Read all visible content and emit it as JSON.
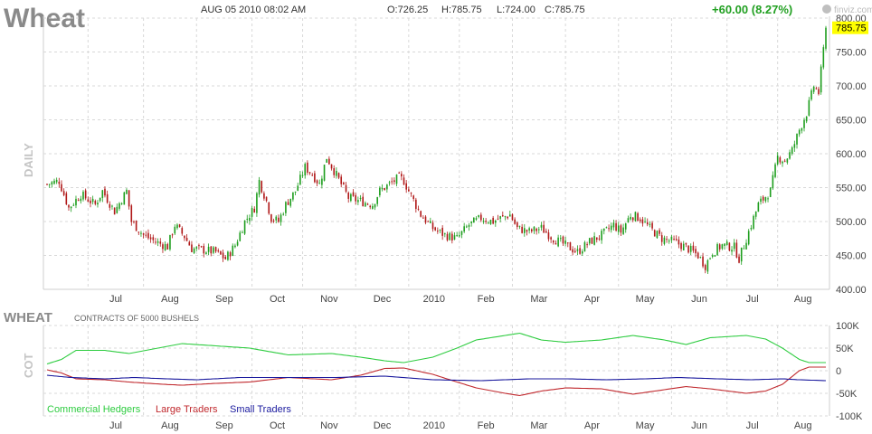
{
  "header": {
    "title": "Wheat",
    "datetime": "AUG 05 2010 08:02 AM",
    "open": "O:726.25",
    "high": "H:785.75",
    "low": "L:724.00",
    "close": "C:785.75",
    "change": "+60.00 (8.27%)",
    "watermark": "finviz.com",
    "last_price_label": "785.75"
  },
  "colors": {
    "up": "#1e9e1e",
    "down": "#b01818",
    "commercial": "#2ecc40",
    "large": "#c0282d",
    "small": "#1a1a9e",
    "grid": "#d8d8d8",
    "price_tag": "#ffff00",
    "change": "#22a022"
  },
  "chart_data": [
    {
      "type": "candlestick",
      "title": "Wheat",
      "ylabel": "DAILY",
      "x_tick_labels": [
        "Jul",
        "Aug",
        "Sep",
        "Oct",
        "Nov",
        "Dec",
        "2010",
        "Feb",
        "Mar",
        "Apr",
        "May",
        "Jun",
        "Jul",
        "Aug"
      ],
      "y_ticks": [
        400,
        450,
        500,
        550,
        600,
        650,
        700,
        750,
        800
      ],
      "y_tick_labels": [
        "400.00",
        "450.00",
        "500.00",
        "550.00",
        "600.00",
        "650.00",
        "700.00",
        "750.00",
        "800.00"
      ],
      "ylim": [
        400,
        800
      ],
      "grid": true,
      "close_path": [
        [
          0,
          555
        ],
        [
          5,
          560
        ],
        [
          9,
          520
        ],
        [
          14,
          540
        ],
        [
          20,
          525
        ],
        [
          23,
          545
        ],
        [
          28,
          515
        ],
        [
          33,
          545
        ],
        [
          35,
          500
        ],
        [
          40,
          480
        ],
        [
          45,
          470
        ],
        [
          50,
          463
        ],
        [
          53,
          495
        ],
        [
          57,
          478
        ],
        [
          60,
          460
        ],
        [
          65,
          458
        ],
        [
          70,
          455
        ],
        [
          74,
          445
        ],
        [
          78,
          465
        ],
        [
          82,
          500
        ],
        [
          86,
          520
        ],
        [
          88,
          560
        ],
        [
          91,
          530
        ],
        [
          93,
          505
        ],
        [
          96,
          500
        ],
        [
          99,
          525
        ],
        [
          103,
          545
        ],
        [
          107,
          580
        ],
        [
          110,
          570
        ],
        [
          113,
          555
        ],
        [
          116,
          595
        ],
        [
          119,
          575
        ],
        [
          122,
          555
        ],
        [
          125,
          535
        ],
        [
          130,
          530
        ],
        [
          135,
          525
        ],
        [
          138,
          545
        ],
        [
          142,
          555
        ],
        [
          146,
          565
        ],
        [
          148,
          560
        ],
        [
          150,
          545
        ],
        [
          155,
          510
        ],
        [
          160,
          490
        ],
        [
          165,
          480
        ],
        [
          170,
          475
        ],
        [
          175,
          495
        ],
        [
          180,
          505
        ],
        [
          185,
          500
        ],
        [
          188,
          505
        ],
        [
          192,
          510
        ],
        [
          195,
          490
        ],
        [
          200,
          485
        ],
        [
          205,
          490
        ],
        [
          210,
          475
        ],
        [
          215,
          465
        ],
        [
          220,
          455
        ],
        [
          225,
          470
        ],
        [
          230,
          480
        ],
        [
          235,
          495
        ],
        [
          238,
          485
        ],
        [
          242,
          510
        ],
        [
          246,
          505
        ],
        [
          250,
          490
        ],
        [
          255,
          475
        ],
        [
          260,
          470
        ],
        [
          265,
          462
        ],
        [
          270,
          450
        ],
        [
          273,
          435
        ],
        [
          276,
          455
        ],
        [
          280,
          465
        ],
        [
          285,
          462
        ],
        [
          287,
          445
        ],
        [
          290,
          475
        ],
        [
          295,
          525
        ],
        [
          300,
          545
        ],
        [
          303,
          595
        ],
        [
          306,
          590
        ],
        [
          309,
          605
        ],
        [
          312,
          635
        ],
        [
          315,
          660
        ],
        [
          318,
          700
        ],
        [
          320,
          690
        ],
        [
          323,
          785
        ]
      ],
      "candle_count": 324,
      "last_close": 785.75
    },
    {
      "type": "line",
      "title": "WHEAT",
      "subtitle": "CONTRACTS OF 5000 BUSHELS",
      "ylabel": "COT",
      "x_tick_labels": [
        "Jul",
        "Aug",
        "Sep",
        "Oct",
        "Nov",
        "Dec",
        "2010",
        "Feb",
        "Mar",
        "Apr",
        "May",
        "Jun",
        "Jul",
        "Aug"
      ],
      "y_ticks": [
        100000,
        50000,
        0,
        -50000,
        -100000
      ],
      "y_tick_labels": [
        "100K",
        "50K",
        "0",
        "-50K",
        "-100K"
      ],
      "ylim": [
        -100000,
        100000
      ],
      "grid": true,
      "series": [
        {
          "name": "Commercial Hedgers",
          "color_key": "commercial",
          "points": [
            [
              0,
              15000
            ],
            [
              6,
              25000
            ],
            [
              12,
              45000
            ],
            [
              24,
              45000
            ],
            [
              34,
              38000
            ],
            [
              48,
              52000
            ],
            [
              56,
              60000
            ],
            [
              70,
              55000
            ],
            [
              84,
              50000
            ],
            [
              100,
              35000
            ],
            [
              118,
              38000
            ],
            [
              130,
              30000
            ],
            [
              140,
              22000
            ],
            [
              148,
              18000
            ],
            [
              160,
              30000
            ],
            [
              170,
              50000
            ],
            [
              178,
              68000
            ],
            [
              190,
              78000
            ],
            [
              196,
              83000
            ],
            [
              205,
              68000
            ],
            [
              215,
              63000
            ],
            [
              230,
              68000
            ],
            [
              243,
              78000
            ],
            [
              256,
              68000
            ],
            [
              265,
              58000
            ],
            [
              275,
              73000
            ],
            [
              290,
              78000
            ],
            [
              298,
              70000
            ],
            [
              305,
              50000
            ],
            [
              312,
              25000
            ],
            [
              316,
              18000
            ],
            [
              323,
              18000
            ]
          ]
        },
        {
          "name": "Large Traders",
          "color_key": "large",
          "points": [
            [
              0,
              2000
            ],
            [
              6,
              -5000
            ],
            [
              12,
              -18000
            ],
            [
              24,
              -20000
            ],
            [
              34,
              -25000
            ],
            [
              48,
              -30000
            ],
            [
              56,
              -32000
            ],
            [
              70,
              -28000
            ],
            [
              84,
              -25000
            ],
            [
              100,
              -15000
            ],
            [
              118,
              -20000
            ],
            [
              130,
              -10000
            ],
            [
              140,
              5000
            ],
            [
              148,
              6000
            ],
            [
              160,
              -8000
            ],
            [
              170,
              -25000
            ],
            [
              178,
              -38000
            ],
            [
              190,
              -50000
            ],
            [
              196,
              -55000
            ],
            [
              205,
              -45000
            ],
            [
              215,
              -38000
            ],
            [
              230,
              -40000
            ],
            [
              243,
              -52000
            ],
            [
              256,
              -42000
            ],
            [
              265,
              -35000
            ],
            [
              275,
              -40000
            ],
            [
              290,
              -50000
            ],
            [
              298,
              -45000
            ],
            [
              305,
              -30000
            ],
            [
              312,
              0
            ],
            [
              316,
              8000
            ],
            [
              323,
              8000
            ]
          ]
        },
        {
          "name": "Small Traders",
          "color_key": "small",
          "points": [
            [
              0,
              -10000
            ],
            [
              10,
              -15000
            ],
            [
              24,
              -18000
            ],
            [
              36,
              -15000
            ],
            [
              50,
              -18000
            ],
            [
              62,
              -20000
            ],
            [
              80,
              -15000
            ],
            [
              96,
              -15000
            ],
            [
              120,
              -15000
            ],
            [
              140,
              -12000
            ],
            [
              160,
              -20000
            ],
            [
              180,
              -22000
            ],
            [
              200,
              -18000
            ],
            [
              216,
              -18000
            ],
            [
              232,
              -20000
            ],
            [
              248,
              -18000
            ],
            [
              262,
              -15000
            ],
            [
              278,
              -18000
            ],
            [
              292,
              -20000
            ],
            [
              305,
              -18000
            ],
            [
              312,
              -20000
            ],
            [
              323,
              -22000
            ]
          ]
        }
      ]
    }
  ]
}
